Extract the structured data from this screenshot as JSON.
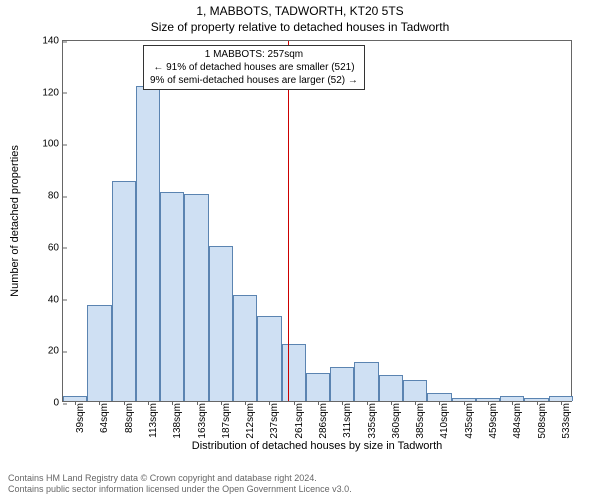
{
  "title": "1, MABBOTS, TADWORTH, KT20 5TS",
  "subtitle": "Size of property relative to detached houses in Tadworth",
  "y_label": "Number of detached properties",
  "x_label": "Distribution of detached houses by size in Tadworth",
  "chart": {
    "type": "histogram",
    "ylim": [
      0,
      140
    ],
    "yticks": [
      0,
      20,
      40,
      60,
      80,
      100,
      120,
      140
    ],
    "x_categories": [
      "39sqm",
      "64sqm",
      "88sqm",
      "113sqm",
      "138sqm",
      "163sqm",
      "187sqm",
      "212sqm",
      "237sqm",
      "261sqm",
      "286sqm",
      "311sqm",
      "335sqm",
      "360sqm",
      "385sqm",
      "410sqm",
      "435sqm",
      "459sqm",
      "484sqm",
      "508sqm",
      "533sqm"
    ],
    "values": [
      2,
      37,
      85,
      122,
      81,
      80,
      60,
      41,
      33,
      22,
      11,
      13,
      15,
      10,
      8,
      3,
      1,
      1,
      2,
      1,
      2
    ],
    "bar_fill": "#cfe0f3",
    "bar_border": "#5b84b1",
    "background": "#ffffff",
    "axis_color": "#666666",
    "ref_line_x": 257,
    "ref_line_color": "#cc0000",
    "annotation": {
      "line1": "1 MABBOTS: 257sqm",
      "line2": "← 91% of detached houses are smaller (521)",
      "line3": "9% of semi-detached houses are larger (52) →"
    }
  },
  "copyright": {
    "line1": "Contains HM Land Registry data © Crown copyright and database right 2024.",
    "line2": "Contains public sector information licensed under the Open Government Licence v3.0."
  }
}
